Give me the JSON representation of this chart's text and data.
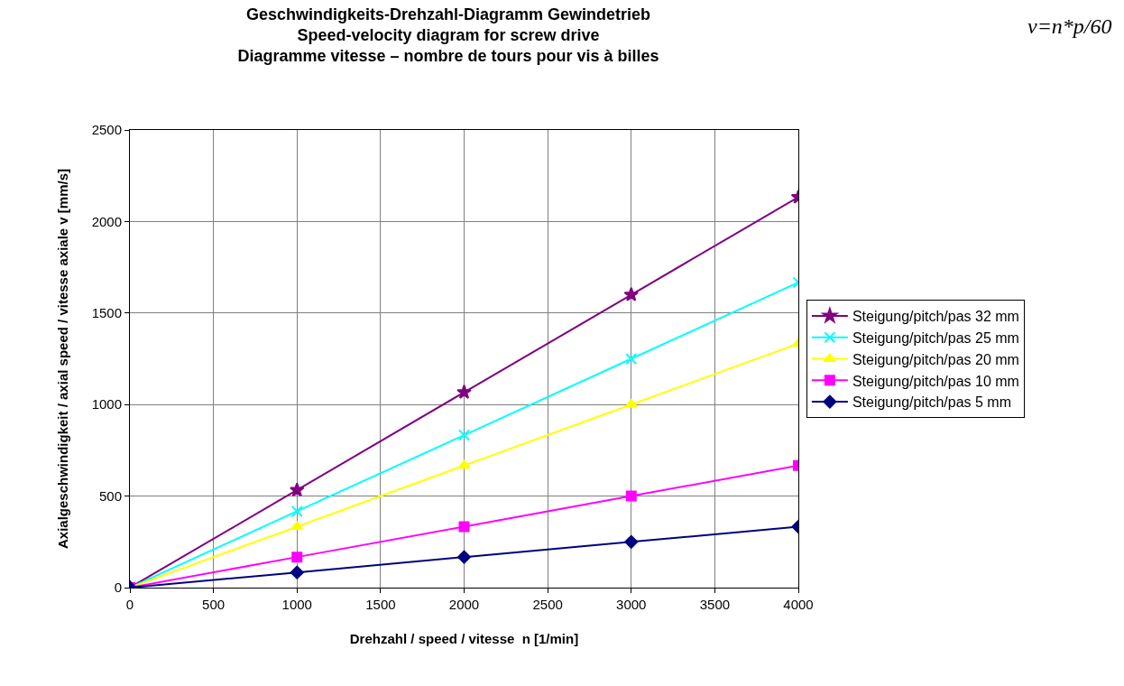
{
  "chart_data": {
    "type": "line",
    "title": "Geschwindigkeits-Drehzahl-Diagramm Gewindetrieb\nSpeed-velocity diagram for screw drive\nDiagramme vitesse – nombre de tours pour vis à billes",
    "xlabel": "Drehzahl / speed / vitesse  n [1/min]",
    "ylabel": "Axialgeschwindigkeit / axial speed / vitesse axiale v [mm/s]",
    "annotations": [
      "v=n*p/60"
    ],
    "x": [
      0,
      1000,
      2000,
      3000,
      4000
    ],
    "series": [
      {
        "name": "Steigung/pitch/pas 32 mm",
        "color": "#800080",
        "marker": "star",
        "values": [
          0,
          533,
          1067,
          1600,
          2133
        ]
      },
      {
        "name": "Steigung/pitch/pas 25 mm",
        "color": "#00ffff",
        "marker": "cross",
        "values": [
          0,
          417,
          833,
          1250,
          1667
        ]
      },
      {
        "name": "Steigung/pitch/pas 20 mm",
        "color": "#ffff00",
        "marker": "triangle",
        "values": [
          0,
          333,
          667,
          1000,
          1333
        ]
      },
      {
        "name": "Steigung/pitch/pas 10 mm",
        "color": "#ff00ff",
        "marker": "square",
        "values": [
          0,
          167,
          333,
          500,
          667
        ]
      },
      {
        "name": "Steigung/pitch/pas 5 mm",
        "color": "#000080",
        "marker": "diamond",
        "values": [
          0,
          83,
          167,
          250,
          333
        ]
      }
    ],
    "xlim": [
      0,
      4000
    ],
    "xticks": [
      0,
      500,
      1000,
      1500,
      2000,
      2500,
      3000,
      3500,
      4000
    ],
    "ylim": [
      0,
      2500
    ],
    "yticks": [
      0,
      500,
      1000,
      1500,
      2000,
      2500
    ],
    "grid": true,
    "legend": "right",
    "line_style": "solid"
  }
}
